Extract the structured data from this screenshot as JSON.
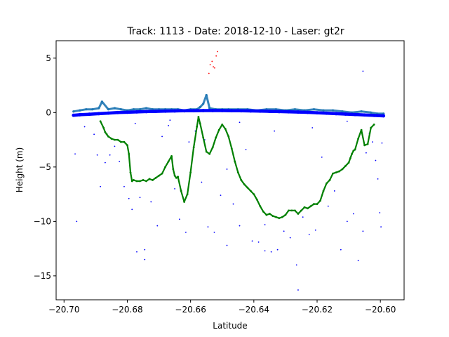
{
  "chart_data": {
    "type": "scatter",
    "title": "Track: 1113 - Date: 2018-12-10 - Laser: gt2r",
    "xlabel": "Latitude",
    "ylabel": "Height (m)",
    "xlim": [
      -20.7025,
      -20.5925
    ],
    "ylim": [
      -17.2,
      6.6
    ],
    "xticks": [
      -20.7,
      -20.68,
      -20.66,
      -20.64,
      -20.62,
      -20.6
    ],
    "xtick_labels": [
      "−20.70",
      "−20.68",
      "−20.66",
      "−20.64",
      "−20.62",
      "−20.60"
    ],
    "yticks": [
      -15,
      -10,
      -5,
      0,
      5
    ],
    "ytick_labels": [
      "−15",
      "−10",
      "−5",
      "0",
      "5"
    ],
    "grid": false,
    "legend": "none",
    "series": [
      {
        "color": "#1f77b4",
        "marker": "small-dot",
        "x": [
          -20.697,
          -20.695,
          -20.693,
          -20.691,
          -20.689,
          -20.688,
          -20.686,
          -20.684,
          -20.682,
          -20.68,
          -20.678,
          -20.676,
          -20.674,
          -20.672,
          -20.67,
          -20.668,
          -20.666,
          -20.664,
          -20.662,
          -20.66,
          -20.658,
          -20.657,
          -20.656,
          -20.655,
          -20.654,
          -20.652,
          -20.65,
          -20.648,
          -20.645,
          -20.642,
          -20.639,
          -20.636,
          -20.633,
          -20.63,
          -20.627,
          -20.624,
          -20.621,
          -20.618,
          -20.615,
          -20.612,
          -20.609,
          -20.606,
          -20.603,
          -20.601,
          -20.599
        ],
        "y": [
          0.1,
          0.2,
          0.3,
          0.3,
          0.4,
          1.0,
          0.3,
          0.4,
          0.3,
          0.2,
          0.3,
          0.3,
          0.4,
          0.3,
          0.3,
          0.3,
          0.3,
          0.3,
          0.2,
          0.3,
          0.3,
          0.5,
          0.8,
          1.6,
          0.4,
          0.3,
          0.3,
          0.3,
          0.3,
          0.3,
          0.2,
          0.3,
          0.3,
          0.2,
          0.3,
          0.2,
          0.3,
          0.2,
          0.2,
          0.1,
          0.0,
          0.1,
          0.0,
          -0.1,
          -0.1
        ]
      },
      {
        "color": "#0000ff",
        "marker": "small-dot",
        "x": [
          -20.697,
          -20.695,
          -20.692,
          -20.689,
          -20.686,
          -20.683,
          -20.68,
          -20.677,
          -20.674,
          -20.671,
          -20.668,
          -20.665,
          -20.662,
          -20.659,
          -20.656,
          -20.653,
          -20.65,
          -20.647,
          -20.644,
          -20.641,
          -20.638,
          -20.635,
          -20.632,
          -20.629,
          -20.626,
          -20.623,
          -20.62,
          -20.617,
          -20.614,
          -20.611,
          -20.608,
          -20.605,
          -20.602,
          -20.599
        ],
        "y": [
          -0.25,
          -0.2,
          -0.15,
          -0.1,
          -0.05,
          0.0,
          0.03,
          0.06,
          0.09,
          0.11,
          0.13,
          0.15,
          0.16,
          0.17,
          0.18,
          0.18,
          0.18,
          0.17,
          0.16,
          0.15,
          0.13,
          0.11,
          0.09,
          0.07,
          0.05,
          0.02,
          -0.02,
          -0.06,
          -0.1,
          -0.14,
          -0.18,
          -0.22,
          -0.26,
          -0.3
        ]
      },
      {
        "color": "#008000",
        "marker": "small-dot",
        "x": [
          -20.6885,
          -20.6875,
          -20.687,
          -20.6865,
          -20.686,
          -20.685,
          -20.684,
          -20.683,
          -20.682,
          -20.681,
          -20.68,
          -20.6795,
          -20.679,
          -20.6785,
          -20.678,
          -20.677,
          -20.676,
          -20.675,
          -20.674,
          -20.673,
          -20.672,
          -20.671,
          -20.67,
          -20.669,
          -20.668,
          -20.667,
          -20.666,
          -20.6655,
          -20.665,
          -20.6645,
          -20.664,
          -20.663,
          -20.662,
          -20.661,
          -20.66,
          -20.659,
          -20.658,
          -20.6575,
          -20.657,
          -20.656,
          -20.655,
          -20.654,
          -20.653,
          -20.652,
          -20.651,
          -20.65,
          -20.649,
          -20.648,
          -20.647,
          -20.646,
          -20.645,
          -20.644,
          -20.643,
          -20.642,
          -20.641,
          -20.64,
          -20.639,
          -20.638,
          -20.637,
          -20.636,
          -20.635,
          -20.634,
          -20.633,
          -20.632,
          -20.631,
          -20.63,
          -20.629,
          -20.628,
          -20.627,
          -20.626,
          -20.625,
          -20.624,
          -20.623,
          -20.622,
          -20.621,
          -20.62,
          -20.619,
          -20.618,
          -20.617,
          -20.616,
          -20.615,
          -20.614,
          -20.613,
          -20.612,
          -20.611,
          -20.61,
          -20.6095,
          -20.609,
          -20.6085,
          -20.608,
          -20.607,
          -20.606,
          -20.605,
          -20.604,
          -20.603,
          -20.602
        ],
        "y": [
          -0.8,
          -1.4,
          -1.8,
          -2.0,
          -2.2,
          -2.4,
          -2.5,
          -2.5,
          -2.7,
          -2.7,
          -3.0,
          -3.8,
          -5.5,
          -6.3,
          -6.2,
          -6.3,
          -6.3,
          -6.2,
          -6.3,
          -6.1,
          -6.2,
          -6.0,
          -5.8,
          -5.6,
          -5.0,
          -4.5,
          -4.0,
          -5.2,
          -5.8,
          -6.0,
          -5.9,
          -7.2,
          -8.2,
          -7.5,
          -5.5,
          -3.2,
          -1.3,
          -0.4,
          -1.0,
          -2.3,
          -3.6,
          -3.8,
          -3.2,
          -2.3,
          -1.6,
          -1.1,
          -1.5,
          -2.2,
          -3.3,
          -4.5,
          -5.5,
          -6.2,
          -6.6,
          -6.9,
          -7.2,
          -7.5,
          -8.0,
          -8.6,
          -9.1,
          -9.4,
          -9.3,
          -9.5,
          -9.6,
          -9.7,
          -9.6,
          -9.4,
          -9.0,
          -9.0,
          -9.0,
          -9.3,
          -9.0,
          -8.7,
          -8.8,
          -8.6,
          -8.4,
          -8.4,
          -8.1,
          -7.2,
          -6.5,
          -6.2,
          -5.6,
          -5.5,
          -5.4,
          -5.2,
          -4.9,
          -4.6,
          -4.2,
          -3.8,
          -3.5,
          -3.4,
          -2.4,
          -1.6,
          -3.0,
          -2.9,
          -1.4,
          -1.1
        ]
      },
      {
        "color": "#ff0000",
        "marker": "small-dot",
        "x": [
          -20.6542,
          -20.6538,
          -20.6532,
          -20.6528,
          -20.6524,
          -20.6519,
          -20.6515
        ],
        "y": [
          3.6,
          4.4,
          4.7,
          4.2,
          4.1,
          5.2,
          5.6
        ]
      }
    ],
    "scatter_noise": [
      {
        "x": -20.6965,
        "y": -3.8
      },
      {
        "x": -20.696,
        "y": -10.0
      },
      {
        "x": -20.6935,
        "y": -1.3
      },
      {
        "x": -20.6905,
        "y": -2.0
      },
      {
        "x": -20.6885,
        "y": -6.8
      },
      {
        "x": -20.687,
        "y": -4.6
      },
      {
        "x": -20.6855,
        "y": -3.9
      },
      {
        "x": -20.684,
        "y": -3.1
      },
      {
        "x": -20.6825,
        "y": -4.5
      },
      {
        "x": -20.681,
        "y": -6.8
      },
      {
        "x": -20.6795,
        "y": -7.9
      },
      {
        "x": -20.6785,
        "y": -8.9
      },
      {
        "x": -20.677,
        "y": -12.8
      },
      {
        "x": -20.676,
        "y": -7.8
      },
      {
        "x": -20.6745,
        "y": -12.6
      },
      {
        "x": -20.6745,
        "y": -13.5
      },
      {
        "x": -20.6725,
        "y": -8.2
      },
      {
        "x": -20.6705,
        "y": -10.4
      },
      {
        "x": -20.669,
        "y": -2.2
      },
      {
        "x": -20.667,
        "y": -1.2
      },
      {
        "x": -20.665,
        "y": -7.0
      },
      {
        "x": -20.6635,
        "y": -9.8
      },
      {
        "x": -20.6615,
        "y": -11.0
      },
      {
        "x": -20.6605,
        "y": -2.7
      },
      {
        "x": -20.6585,
        "y": -1.7
      },
      {
        "x": -20.6565,
        "y": -6.4
      },
      {
        "x": -20.6545,
        "y": -10.5
      },
      {
        "x": -20.6525,
        "y": -11.0
      },
      {
        "x": -20.6505,
        "y": -7.6
      },
      {
        "x": -20.6485,
        "y": -5.2
      },
      {
        "x": -20.6465,
        "y": -8.4
      },
      {
        "x": -20.6445,
        "y": -10.4
      },
      {
        "x": -20.6425,
        "y": -3.4
      },
      {
        "x": -20.6405,
        "y": -11.8
      },
      {
        "x": -20.6385,
        "y": -11.9
      },
      {
        "x": -20.6365,
        "y": -10.3
      },
      {
        "x": -20.6345,
        "y": -12.8
      },
      {
        "x": -20.6325,
        "y": -12.6
      },
      {
        "x": -20.6305,
        "y": -10.9
      },
      {
        "x": -20.6285,
        "y": -11.5
      },
      {
        "x": -20.6265,
        "y": -14.0
      },
      {
        "x": -20.626,
        "y": -16.3
      },
      {
        "x": -20.6245,
        "y": -9.6
      },
      {
        "x": -20.6225,
        "y": -11.2
      },
      {
        "x": -20.6205,
        "y": -10.8
      },
      {
        "x": -20.6185,
        "y": -4.1
      },
      {
        "x": -20.6165,
        "y": -8.6
      },
      {
        "x": -20.6145,
        "y": -7.2
      },
      {
        "x": -20.6125,
        "y": -12.6
      },
      {
        "x": -20.6105,
        "y": -10.0
      },
      {
        "x": -20.6085,
        "y": -9.3
      },
      {
        "x": -20.607,
        "y": -13.6
      },
      {
        "x": -20.6055,
        "y": -10.9
      },
      {
        "x": -20.6045,
        "y": -3.7
      },
      {
        "x": -20.6035,
        "y": -1.9
      },
      {
        "x": -20.6025,
        "y": -2.7
      },
      {
        "x": -20.6015,
        "y": -4.4
      },
      {
        "x": -20.6008,
        "y": -6.1
      },
      {
        "x": -20.6002,
        "y": -9.2
      },
      {
        "x": -20.5998,
        "y": -10.5
      },
      {
        "x": -20.5995,
        "y": -2.8
      },
      {
        "x": -20.6055,
        "y": 3.8
      },
      {
        "x": -20.6895,
        "y": -3.9
      },
      {
        "x": -20.6555,
        "y": -2.5
      },
      {
        "x": -20.6445,
        "y": -0.9
      },
      {
        "x": -20.6335,
        "y": -1.7
      },
      {
        "x": -20.6215,
        "y": -1.4
      },
      {
        "x": -20.6105,
        "y": -0.8
      },
      {
        "x": -20.6775,
        "y": -1.0
      },
      {
        "x": -20.6665,
        "y": -0.7
      },
      {
        "x": -20.6485,
        "y": -12.2
      },
      {
        "x": -20.6365,
        "y": -12.7
      }
    ]
  }
}
